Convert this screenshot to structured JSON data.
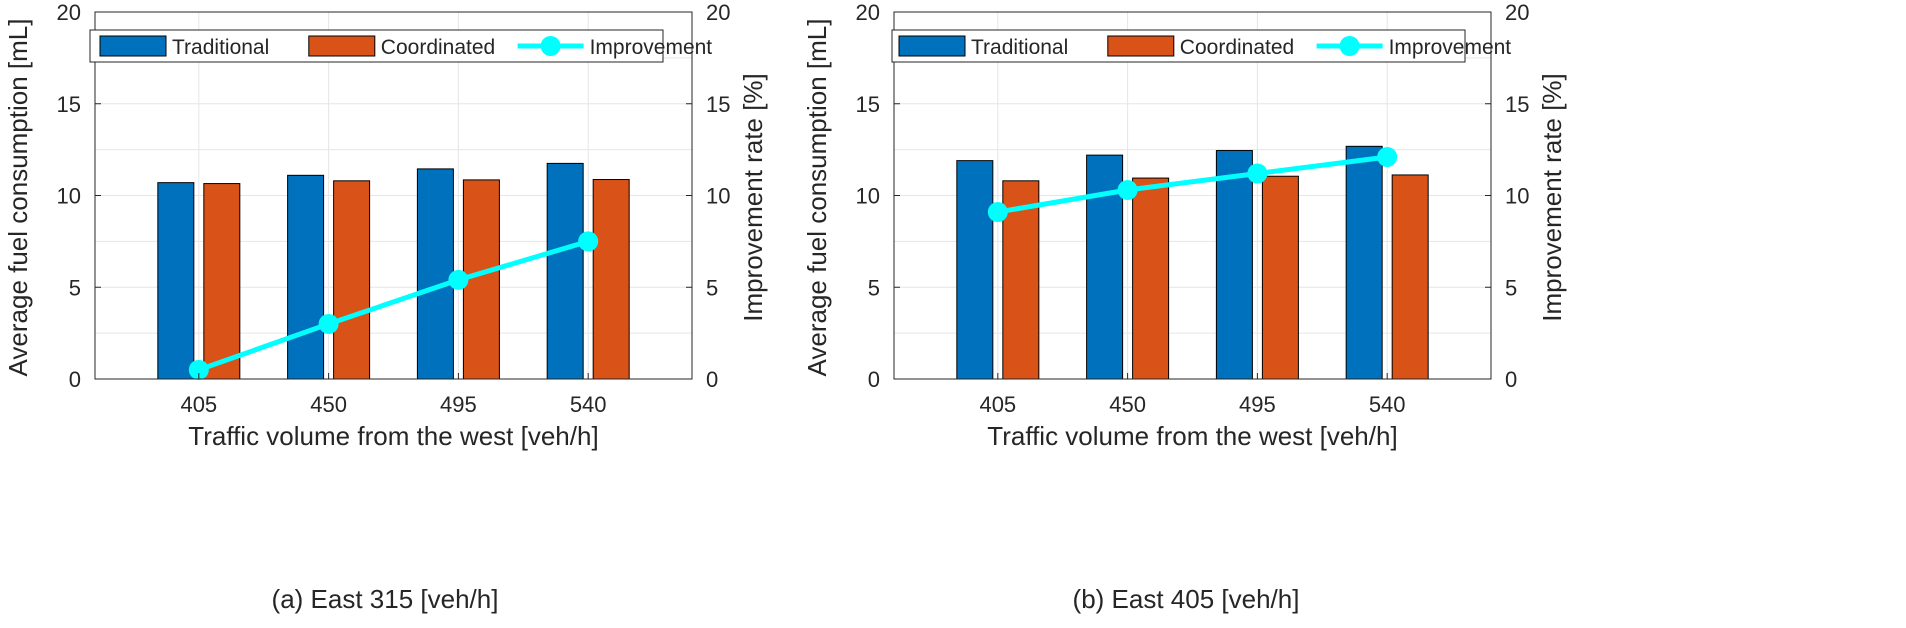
{
  "chart_data": [
    {
      "type": "bar",
      "caption": "(a) East  315 [veh/h]",
      "categories": [
        "405",
        "450",
        "495",
        "540"
      ],
      "xlabel": "Traffic volume from the west  [veh/h]",
      "ylabel": "Average fuel consumption [mL]",
      "y2label": "Improvement rate [%]",
      "ylim": [
        0,
        20
      ],
      "y2lim": [
        0,
        20
      ],
      "yticks": [
        "0",
        "5",
        "10",
        "15",
        "20"
      ],
      "y2ticks": [
        "0",
        "5",
        "10",
        "15",
        "20"
      ],
      "grid": true,
      "legend_position": "top",
      "series": [
        {
          "name": "Traditional",
          "kind": "bar",
          "color": "#0072BD",
          "values": [
            10.7,
            11.1,
            11.45,
            11.75
          ]
        },
        {
          "name": "Coordinated",
          "kind": "bar",
          "color": "#D95319",
          "values": [
            10.65,
            10.8,
            10.85,
            10.87
          ]
        },
        {
          "name": "Improvement",
          "kind": "line",
          "axis": "right",
          "color": "#00FFFF",
          "values": [
            0.5,
            3.0,
            5.4,
            7.5
          ]
        }
      ]
    },
    {
      "type": "bar",
      "caption": "(b) East 405 [veh/h]",
      "categories": [
        "405",
        "450",
        "495",
        "540"
      ],
      "xlabel": "Traffic volume from the west  [veh/h]",
      "ylabel": "Average fuel consumption [mL]",
      "y2label": "Improvement rate [%]",
      "ylim": [
        0,
        20
      ],
      "y2lim": [
        0,
        20
      ],
      "yticks": [
        "0",
        "5",
        "10",
        "15",
        "20"
      ],
      "y2ticks": [
        "0",
        "5",
        "10",
        "15",
        "20"
      ],
      "grid": true,
      "legend_position": "top",
      "series": [
        {
          "name": "Traditional",
          "kind": "bar",
          "color": "#0072BD",
          "values": [
            11.9,
            12.2,
            12.45,
            12.68
          ]
        },
        {
          "name": "Coordinated",
          "kind": "bar",
          "color": "#D95319",
          "values": [
            10.8,
            10.95,
            11.05,
            11.12
          ]
        },
        {
          "name": "Improvement",
          "kind": "line",
          "axis": "right",
          "color": "#00FFFF",
          "values": [
            9.1,
            10.3,
            11.2,
            12.1
          ]
        }
      ]
    }
  ]
}
